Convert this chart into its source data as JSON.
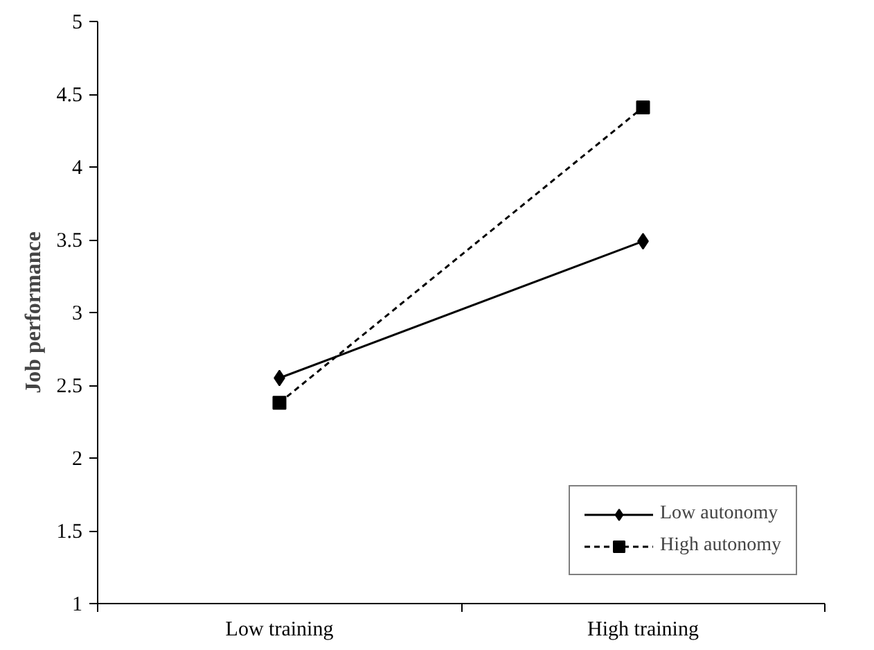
{
  "chart_data": {
    "type": "line",
    "ylabel": "Job performance",
    "categories": [
      "Low training",
      "High training"
    ],
    "series": [
      {
        "name": "Low autonomy",
        "color": "#000000",
        "values": [
          2.55,
          3.49
        ],
        "marker": "diamond",
        "line_style": "solid"
      },
      {
        "name": "High autonomy",
        "color": "#000000",
        "values": [
          2.38,
          4.41
        ],
        "marker": "square",
        "line_style": "dashed"
      }
    ],
    "ylim": [
      1,
      5
    ],
    "yticks": [
      1,
      1.5,
      2,
      2.5,
      3,
      3.5,
      4,
      4.5,
      5
    ],
    "grid": false,
    "legend": "bottom right"
  }
}
